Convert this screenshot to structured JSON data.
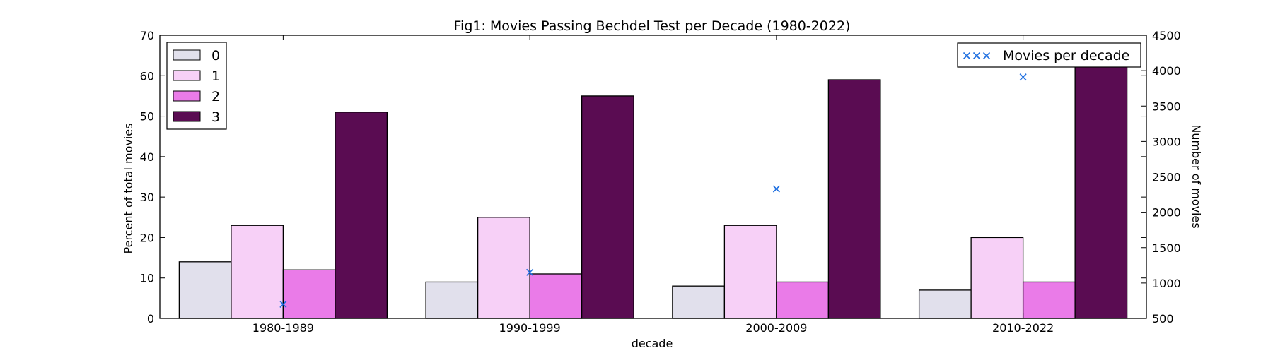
{
  "chart_data": {
    "type": "bar",
    "title": "Fig1: Movies Passing Bechdel Test per Decade (1980-2022)",
    "xlabel": "decade",
    "ylabel": "Percent of total movies",
    "ylabel_right": "Number of movies",
    "categories": [
      "1980-1989",
      "1990-1999",
      "2000-2009",
      "2010-2022"
    ],
    "ylim": [
      0,
      70
    ],
    "yticks": [
      "0",
      "10",
      "20",
      "30",
      "40",
      "50",
      "60",
      "70"
    ],
    "ylim_right": [
      500,
      4500
    ],
    "yticks_right": [
      "500",
      "1000",
      "1500",
      "2000",
      "2500",
      "3000",
      "3500",
      "4000",
      "4500"
    ],
    "grid": false,
    "legend_position": "upper-left",
    "series": [
      {
        "name": "0",
        "values": [
          14,
          9,
          8,
          7
        ],
        "color": "#e1e0ec"
      },
      {
        "name": "1",
        "values": [
          23,
          25,
          23,
          20
        ],
        "color": "#f7d0f7"
      },
      {
        "name": "2",
        "values": [
          12,
          11,
          9,
          9
        ],
        "color": "#ea7be8"
      },
      {
        "name": "3",
        "values": [
          51,
          55,
          59,
          64
        ],
        "color": "#5a0c52"
      }
    ],
    "scatter": {
      "name": "Movies per decade",
      "marker": "x",
      "color": "#1f6fe0",
      "legend_position": "upper-right",
      "values": [
        700,
        1150,
        2330,
        3910
      ]
    }
  }
}
